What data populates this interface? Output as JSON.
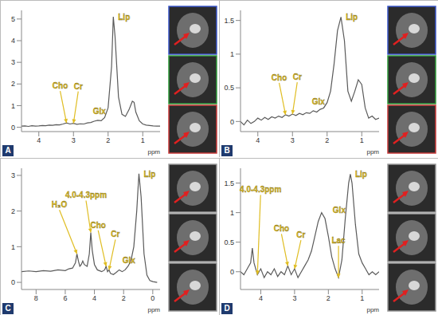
{
  "chart_data": [
    {
      "type": "line",
      "panel": "A",
      "xlabel": "ppm",
      "color": "#5a5a5a",
      "xlim": [
        4.5,
        0.5
      ],
      "xticks": [
        4,
        3,
        2,
        1
      ],
      "ylim": [
        -0.2,
        5.4
      ],
      "yticks": [
        0,
        1,
        2,
        3,
        4,
        5
      ],
      "x": [
        4.5,
        4.4,
        4.3,
        4.2,
        4.1,
        4.0,
        3.9,
        3.8,
        3.7,
        3.6,
        3.5,
        3.4,
        3.3,
        3.2,
        3.1,
        3.0,
        2.9,
        2.8,
        2.7,
        2.6,
        2.5,
        2.4,
        2.3,
        2.2,
        2.1,
        2.0,
        1.9,
        1.85,
        1.8,
        1.7,
        1.6,
        1.5,
        1.4,
        1.3,
        1.25,
        1.2,
        1.1,
        1.0,
        0.9,
        0.8,
        0.7,
        0.6,
        0.5
      ],
      "values": [
        0.05,
        0.06,
        0.04,
        0.07,
        0.05,
        0.06,
        0.08,
        0.07,
        0.1,
        0.09,
        0.12,
        0.11,
        0.15,
        0.2,
        0.15,
        0.18,
        0.14,
        0.16,
        0.15,
        0.2,
        0.22,
        0.28,
        0.32,
        0.3,
        0.45,
        0.9,
        2.8,
        5.1,
        4.2,
        1.4,
        0.6,
        0.5,
        0.8,
        1.2,
        1.15,
        0.7,
        0.3,
        0.15,
        0.1,
        0.08,
        0.06,
        0.05,
        0.05
      ],
      "annotations": [
        {
          "text": "Cho",
          "x": 3.2,
          "y": 0.2
        },
        {
          "text": "Cr",
          "x": 3.0,
          "y": 0.18
        },
        {
          "text": "Glx",
          "x": 2.3,
          "y": 0.32
        },
        {
          "text": "Lip",
          "x": 1.85,
          "y": 5.1
        }
      ]
    },
    {
      "type": "line",
      "panel": "B",
      "xlabel": "ppm",
      "color": "#5a5a5a",
      "xlim": [
        4.5,
        0.5
      ],
      "xticks": [
        4,
        3,
        2,
        1
      ],
      "ylim": [
        -0.15,
        1.65
      ],
      "yticks": [
        0,
        0.5,
        1,
        1.5
      ],
      "x": [
        4.5,
        4.4,
        4.3,
        4.2,
        4.1,
        4.0,
        3.9,
        3.8,
        3.7,
        3.6,
        3.5,
        3.4,
        3.3,
        3.2,
        3.1,
        3.0,
        2.9,
        2.8,
        2.7,
        2.6,
        2.5,
        2.4,
        2.3,
        2.2,
        2.1,
        2.0,
        1.9,
        1.8,
        1.7,
        1.6,
        1.5,
        1.4,
        1.3,
        1.2,
        1.1,
        1.0,
        0.9,
        0.8,
        0.7,
        0.6,
        0.5
      ],
      "values": [
        0.0,
        -0.05,
        0.02,
        -0.03,
        0.0,
        0.05,
        0.02,
        0.06,
        0.03,
        0.07,
        0.05,
        0.08,
        0.06,
        0.1,
        0.08,
        0.11,
        0.09,
        0.12,
        0.1,
        0.13,
        0.12,
        0.16,
        0.14,
        0.18,
        0.2,
        0.28,
        0.45,
        0.85,
        1.35,
        1.55,
        1.2,
        0.45,
        0.3,
        0.45,
        0.62,
        0.55,
        0.2,
        0.05,
        0.08,
        0.03,
        0.05
      ],
      "annotations": [
        {
          "text": "Cho",
          "x": 3.2,
          "y": 0.1
        },
        {
          "text": "Cr",
          "x": 3.0,
          "y": 0.11
        },
        {
          "text": "Glx",
          "x": 2.3,
          "y": 0.14
        },
        {
          "text": "Lip",
          "x": 1.6,
          "y": 1.55
        }
      ]
    },
    {
      "type": "line",
      "panel": "C",
      "xlabel": "ppm",
      "color": "#5a5a5a",
      "xlim": [
        9,
        -0.5
      ],
      "xticks": [
        8,
        6,
        4,
        2,
        0
      ],
      "ylim": [
        -0.2,
        3.2
      ],
      "yticks": [
        0,
        1,
        2,
        3
      ],
      "x": [
        9,
        8.5,
        8,
        7.5,
        7,
        6.5,
        6,
        5.75,
        5.5,
        5.3,
        5.2,
        5.1,
        5.0,
        4.9,
        4.8,
        4.7,
        4.5,
        4.35,
        4.25,
        4.15,
        4.0,
        3.8,
        3.5,
        3.3,
        3.2,
        3.1,
        3.0,
        2.9,
        2.7,
        2.5,
        2.3,
        2.1,
        1.9,
        1.7,
        1.5,
        1.3,
        1.1,
        0.95,
        0.8,
        0.6,
        0.4,
        0.2,
        0,
        -0.3
      ],
      "values": [
        0.3,
        0.32,
        0.3,
        0.33,
        0.31,
        0.35,
        0.33,
        0.38,
        0.4,
        0.55,
        0.8,
        0.6,
        0.45,
        0.5,
        0.6,
        0.5,
        0.45,
        0.8,
        1.4,
        0.9,
        0.5,
        0.35,
        0.3,
        0.35,
        0.45,
        0.3,
        0.35,
        0.25,
        0.22,
        0.28,
        0.35,
        0.3,
        0.35,
        0.45,
        0.6,
        1.0,
        2.0,
        3.05,
        2.4,
        0.8,
        0.2,
        0.05,
        0.02,
        0.0
      ],
      "annotations": [
        {
          "text": "H₂O",
          "x": 5.2,
          "y": 0.8
        },
        {
          "text": "4.0-4.3ppm",
          "x": 4.25,
          "y": 1.4
        },
        {
          "text": "Cho",
          "x": 3.2,
          "y": 0.45
        },
        {
          "text": "Cr",
          "x": 3.0,
          "y": 0.35
        },
        {
          "text": "Glx",
          "x": 2.3,
          "y": 0.35
        },
        {
          "text": "Lip",
          "x": 0.95,
          "y": 3.05
        }
      ]
    },
    {
      "type": "line",
      "panel": "D",
      "xlabel": "ppm",
      "color": "#5a5a5a",
      "xlim": [
        4.6,
        0.5
      ],
      "xticks": [
        4,
        3,
        2,
        1
      ],
      "ylim": [
        -0.3,
        1.75
      ],
      "yticks": [
        0,
        0.5,
        1,
        1.5
      ],
      "x": [
        4.6,
        4.5,
        4.4,
        4.3,
        4.25,
        4.2,
        4.1,
        4.0,
        3.9,
        3.8,
        3.7,
        3.6,
        3.5,
        3.4,
        3.3,
        3.2,
        3.1,
        3.0,
        2.9,
        2.8,
        2.7,
        2.6,
        2.5,
        2.4,
        2.3,
        2.2,
        2.1,
        2.0,
        1.9,
        1.8,
        1.7,
        1.6,
        1.5,
        1.4,
        1.35,
        1.3,
        1.2,
        1.1,
        1.0,
        0.9,
        0.8,
        0.7,
        0.6,
        0.5
      ],
      "values": [
        0.0,
        -0.05,
        0.05,
        0.15,
        0.4,
        0.15,
        -0.05,
        0.05,
        -0.1,
        0.0,
        -0.05,
        0.05,
        -0.08,
        0.0,
        -0.05,
        0.1,
        -0.05,
        0.05,
        -0.1,
        0.0,
        0.1,
        0.2,
        0.35,
        0.6,
        0.85,
        1.0,
        0.9,
        0.6,
        0.25,
        0.05,
        -0.1,
        0.2,
        0.9,
        1.5,
        1.65,
        1.5,
        0.8,
        0.3,
        0.15,
        0.05,
        -0.05,
        0.0,
        -0.05,
        0.0
      ],
      "annotations": [
        {
          "text": "4.0-4.3ppm",
          "x": 4.1,
          "y": -0.05
        },
        {
          "text": "Cho",
          "x": 3.2,
          "y": 0.1
        },
        {
          "text": "Cr",
          "x": 3.0,
          "y": 0.05
        },
        {
          "text": "Glx",
          "x": 2.2,
          "y": 1.0
        },
        {
          "text": "Lac",
          "x": 1.7,
          "y": -0.1
        },
        {
          "text": "Lip",
          "x": 1.35,
          "y": 1.65
        }
      ]
    }
  ]
}
